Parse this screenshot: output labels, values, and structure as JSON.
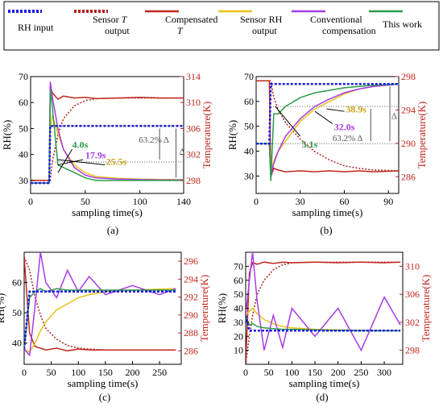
{
  "legend": [
    {
      "label": "RH input",
      "color": "#1a1ae6",
      "dash": "dotted"
    },
    {
      "label": "Sensor T output",
      "label_lines": [
        "Sensor T",
        "output"
      ],
      "italic_word": "T",
      "color": "#b22222",
      "dash": "dotted"
    },
    {
      "label": "Compensated T",
      "label_lines": [
        "Compensated",
        "T"
      ],
      "italic_word": "T",
      "color": "#c0271d",
      "dash": "solid"
    },
    {
      "label": "Sensor RH output",
      "label_lines": [
        "Sensor RH",
        "output"
      ],
      "color": "#e8c21a",
      "dash": "solid"
    },
    {
      "label": "Conventional compensation",
      "label_lines": [
        "Conventional",
        "compensation"
      ],
      "color": "#a63de6",
      "dash": "solid"
    },
    {
      "label": "This work",
      "color": "#2a9a4a",
      "dash": "solid"
    }
  ],
  "colors": {
    "rh_input": "#1a1ae6",
    "sensor_t": "#b22222",
    "comp_t": "#c0271d",
    "sensor_rh": "#e8c21a",
    "conventional": "#a63de6",
    "this_work": "#2a9a4a",
    "temp_axis": "#c0271d"
  },
  "chart_data": [
    {
      "panel": "(a)",
      "type": "line",
      "xlabel": "sampling time(s)",
      "ylabel": "RH(%)",
      "y2label": "Temperature(K)",
      "xlim": [
        0,
        140
      ],
      "ylim": [
        25,
        70
      ],
      "y2lim": [
        296,
        314
      ],
      "xticks": [
        0,
        50,
        100,
        140
      ],
      "yticks": [
        30,
        40,
        50,
        60,
        70
      ],
      "y2ticks": [
        298,
        302,
        306,
        310,
        314
      ],
      "x": [
        0,
        17,
        18,
        20,
        25,
        30,
        40,
        50,
        60,
        80,
        100,
        120,
        140
      ],
      "series": {
        "rh_input": [
          29,
          29,
          51,
          51,
          51,
          51,
          51,
          51,
          51,
          51,
          51,
          51,
          51
        ],
        "sensor_t": [
          298,
          298,
          298,
          301,
          305,
          307.5,
          309.5,
          310.3,
          310.6,
          310.7,
          310.7,
          310.7,
          310.7
        ],
        "comp_t": [
          298,
          298,
          312.5,
          311.5,
          310.5,
          311,
          310.7,
          310.8,
          310.6,
          310.7,
          310.8,
          310.7,
          310.7
        ],
        "sensor_rh": [
          29,
          29,
          50,
          55,
          48,
          42,
          36,
          33,
          31.5,
          30.8,
          30.5,
          30.4,
          30.3
        ],
        "conventional": [
          29,
          29,
          68,
          62,
          50,
          42,
          35,
          32,
          31,
          30.5,
          30.3,
          30.2,
          30.2
        ],
        "this_work": [
          29,
          29,
          65,
          58,
          36,
          35,
          33,
          31,
          30,
          30,
          30,
          30,
          30
        ]
      },
      "annotations": [
        "4.0s",
        "17.9s",
        "25.5s",
        "63.2% Δ",
        "Δ"
      ]
    },
    {
      "panel": "(b)",
      "type": "line",
      "xlabel": "sampling time(s)",
      "ylabel": "RH(%)",
      "y2label": "Temperature(K)",
      "xlim": [
        0,
        97
      ],
      "ylim": [
        23,
        70
      ],
      "y2lim": [
        284,
        298
      ],
      "xticks": [
        0,
        30,
        60,
        90
      ],
      "yticks": [
        30,
        40,
        50,
        60,
        70
      ],
      "y2ticks": [
        286,
        290,
        294,
        298
      ],
      "x": [
        0,
        9,
        10,
        12,
        15,
        20,
        30,
        40,
        50,
        60,
        70,
        80,
        97
      ],
      "series": {
        "rh_input": [
          43,
          43,
          67,
          67,
          67,
          67,
          67,
          67,
          67,
          67,
          67,
          67,
          67
        ],
        "sensor_t": [
          297.5,
          297.5,
          297.5,
          295.5,
          294,
          292.5,
          290.5,
          289,
          288,
          287.3,
          287,
          286.8,
          286.7
        ],
        "comp_t": [
          297.5,
          297.5,
          286,
          287,
          286.8,
          286.6,
          286.7,
          286.6,
          286.7,
          286.6,
          286.7,
          286.6,
          286.7
        ],
        "sensor_rh": [
          43,
          43,
          32,
          36,
          40,
          44,
          52,
          57,
          60,
          63,
          65,
          66,
          67
        ],
        "conventional": [
          43,
          43,
          30,
          35,
          40,
          46,
          53,
          58,
          61,
          63.5,
          65,
          66,
          67
        ],
        "this_work": [
          43,
          43,
          28,
          55,
          55,
          58,
          61.5,
          63.5,
          64.5,
          65.5,
          66,
          66.5,
          67
        ]
      },
      "annotations": [
        "38.9s",
        "32.0s",
        "5.1s",
        "63.2% Δ",
        "Δ"
      ]
    },
    {
      "panel": "(c)",
      "type": "line",
      "xlabel": "sampling time(s)",
      "ylabel": "RH(%)",
      "y2label": "Temperature(K)",
      "xlim": [
        0,
        290
      ],
      "ylim": [
        33,
        70
      ],
      "y2lim": [
        284.5,
        297
      ],
      "xticks": [
        0,
        50,
        100,
        150,
        200,
        250
      ],
      "yticks": [
        40,
        50,
        60
      ],
      "y2ticks": [
        286,
        288,
        290,
        292,
        294,
        296
      ],
      "x": [
        0,
        10,
        20,
        30,
        40,
        60,
        80,
        100,
        120,
        150,
        200,
        250,
        280
      ],
      "series": {
        "rh_input": [
          38,
          57,
          57,
          57,
          57,
          57,
          57,
          57,
          57,
          57,
          57,
          57,
          57
        ],
        "sensor_t": [
          296.5,
          295,
          292,
          290,
          288.5,
          287.3,
          286.6,
          286.3,
          286.2,
          286.1,
          286.1,
          286.1,
          286.1
        ],
        "comp_t": [
          296.5,
          288,
          286.5,
          286.3,
          286.1,
          286.3,
          286,
          286.2,
          286.1,
          286.1,
          286.1,
          286.1,
          286.1
        ],
        "sensor_rh": [
          38,
          37,
          40,
          44,
          47,
          51,
          53,
          55,
          56,
          57,
          57.5,
          57.8,
          58
        ],
        "conventional": [
          38,
          36,
          52,
          70,
          60,
          55,
          64,
          57,
          62,
          56,
          59,
          56,
          58
        ],
        "this_work": [
          38,
          55,
          57,
          58,
          57,
          58,
          57.5,
          57.5,
          57.5,
          57.5,
          57.5,
          57.5,
          57.5
        ]
      },
      "annotations": []
    },
    {
      "panel": "(d)",
      "type": "line",
      "xlabel": "sampling time(s)",
      "ylabel": "RH(%)",
      "y2label": "Temperature(K)",
      "xlim": [
        0,
        340
      ],
      "ylim": [
        0,
        80
      ],
      "y2lim": [
        296,
        312
      ],
      "xticks": [
        0,
        50,
        100,
        150,
        200,
        250,
        300
      ],
      "yticks": [
        10,
        20,
        30,
        40,
        50,
        60,
        70
      ],
      "y2ticks": [
        298,
        302,
        306,
        310
      ],
      "x": [
        0,
        8,
        15,
        25,
        40,
        60,
        80,
        100,
        150,
        200,
        250,
        300,
        335
      ],
      "series": {
        "rh_input": [
          35,
          24,
          24,
          24,
          24,
          24,
          24,
          24,
          24,
          24,
          24,
          24,
          24
        ],
        "sensor_t": [
          296,
          300,
          303,
          306,
          308,
          309.5,
          310.2,
          310.5,
          310.6,
          310.6,
          310.6,
          310.6,
          310.6
        ],
        "comp_t": [
          296,
          309,
          310.5,
          310.3,
          310.6,
          310.4,
          310.6,
          310.5,
          310.6,
          310.5,
          310.6,
          310.5,
          310.6
        ],
        "sensor_rh": [
          35,
          38,
          40,
          36,
          32,
          29,
          27,
          26,
          25,
          24.5,
          24.2,
          24,
          24
        ],
        "conventional": [
          35,
          60,
          80,
          45,
          10,
          35,
          12,
          40,
          20,
          40,
          10,
          48,
          28
        ],
        "this_work": [
          35,
          28,
          29,
          27,
          26,
          25.5,
          25,
          25,
          24.5,
          24.2,
          24,
          24,
          24
        ]
      },
      "annotations": []
    }
  ]
}
